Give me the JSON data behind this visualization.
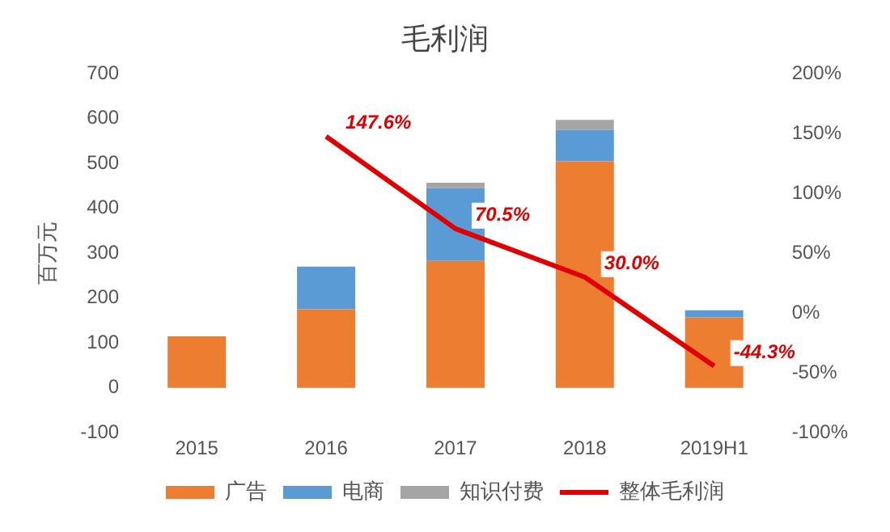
{
  "chart_data": {
    "type": "bar",
    "title": "毛利润",
    "ylabel": "百万元",
    "stacked": true,
    "categories": [
      "2015",
      "2016",
      "2017",
      "2018",
      "2019H1"
    ],
    "series": [
      {
        "name": "广告",
        "color": "#ed7d31",
        "values": [
          115,
          175,
          283,
          505,
          157
        ]
      },
      {
        "name": "电商",
        "color": "#5b9bd5",
        "values": [
          0,
          95,
          162,
          70,
          16
        ]
      },
      {
        "name": "知识付费",
        "color": "#a5a5a5",
        "values": [
          0,
          0,
          12,
          22,
          null
        ]
      },
      {
        "name": "整体毛利润",
        "type": "line",
        "axis": "y2",
        "color": "#e00000",
        "values": [
          null,
          147.6,
          70.5,
          30.0,
          -44.3
        ],
        "value_labels": [
          null,
          "147.6%",
          "70.5%",
          "30.0%",
          "-44.3%"
        ]
      }
    ],
    "ylim": [
      -100,
      700
    ],
    "yticks": [
      -100,
      0,
      100,
      200,
      300,
      400,
      500,
      600,
      700
    ],
    "y2lim": [
      -100,
      200
    ],
    "y2ticks": [
      {
        "value": -100,
        "label": "-100%"
      },
      {
        "value": -50,
        "label": "-50%"
      },
      {
        "value": 0,
        "label": "0%"
      },
      {
        "value": 50,
        "label": "50%"
      },
      {
        "value": 100,
        "label": "100%"
      },
      {
        "value": 150,
        "label": "150%"
      },
      {
        "value": 200,
        "label": "200%"
      }
    ],
    "grid": false,
    "legend": "bottom",
    "marker": "none",
    "line_style": "solid"
  }
}
